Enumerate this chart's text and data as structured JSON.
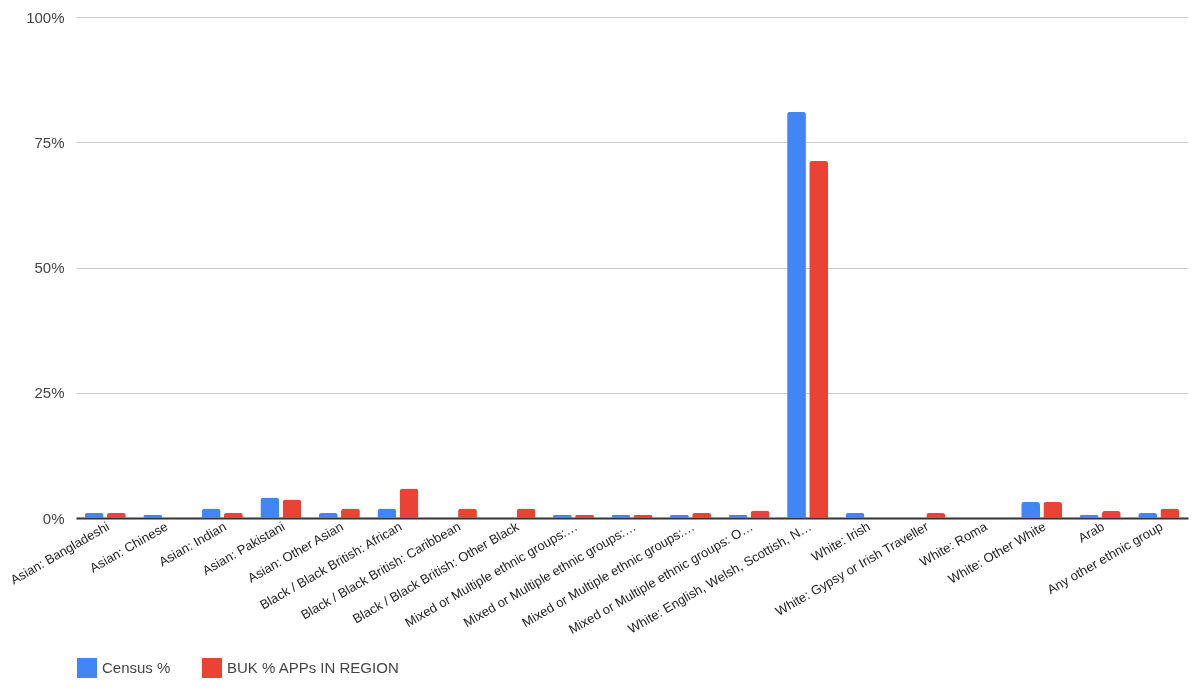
{
  "chart_data": {
    "type": "bar",
    "categories": [
      "Asian: Bangladeshi",
      "Asian: Chinese",
      "Asian: Indian",
      "Asian: Pakistani",
      "Asian: Other Asian",
      "Black / Black British: African",
      "Black / Black British: Caribbean",
      "Black / Black British: Other Black",
      "Mixed or Multiple ethnic groups:…",
      "Mixed or Multiple ethnic groups:…",
      "Mixed or Multiple ethnic groups:…",
      "Mixed or Multiple ethnic groups: O…",
      "White: English, Welsh, Scottish, N…",
      "White: Irish",
      "White: Gypsy or Irish Traveller",
      "White: Roma",
      "White: Other White",
      "Arab",
      "Any other ethnic group"
    ],
    "series": [
      {
        "name": "Census %",
        "color": "#4285f4",
        "values": [
          1.0,
          0.6,
          1.9,
          4.1,
          1.0,
          1.9,
          0,
          0,
          0.6,
          0.6,
          0.6,
          0.6,
          81.1,
          1.0,
          0,
          0,
          3.2,
          0.6,
          1.0
        ]
      },
      {
        "name": "BUK % APPs IN REGION",
        "color": "#ea4335",
        "values": [
          1.0,
          0,
          1.0,
          3.7,
          1.9,
          5.9,
          1.9,
          1.9,
          0.6,
          0.6,
          1.0,
          1.5,
          71.3,
          0,
          1.0,
          0,
          3.2,
          1.4,
          1.9
        ]
      }
    ],
    "ylim": [
      0,
      100
    ],
    "yticks": [
      {
        "value": 0,
        "label": "0%"
      },
      {
        "value": 25,
        "label": "25%"
      },
      {
        "value": 50,
        "label": "50%"
      },
      {
        "value": 75,
        "label": "75%"
      },
      {
        "value": 100,
        "label": "100%"
      }
    ],
    "grid": "y",
    "legend": "bottom"
  }
}
